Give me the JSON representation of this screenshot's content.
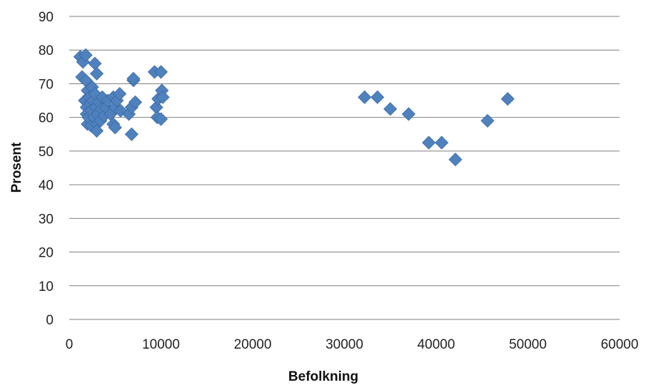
{
  "chart_data": {
    "type": "scatter",
    "title": "",
    "xlabel": "Befolkning",
    "ylabel": "Prosent",
    "xlim": [
      0,
      60000
    ],
    "ylim": [
      0,
      90
    ],
    "xticks": [
      0,
      10000,
      20000,
      30000,
      40000,
      50000,
      60000
    ],
    "yticks": [
      0,
      10,
      20,
      30,
      40,
      50,
      60,
      70,
      80,
      90
    ],
    "grid": "horizontal",
    "legend": "none",
    "marker": "diamond",
    "color": "#4f81bd",
    "points": [
      {
        "x": 1200,
        "y": 78
      },
      {
        "x": 1500,
        "y": 76.5
      },
      {
        "x": 1800,
        "y": 78.5
      },
      {
        "x": 1400,
        "y": 72
      },
      {
        "x": 1800,
        "y": 71
      },
      {
        "x": 1700,
        "y": 65
      },
      {
        "x": 1900,
        "y": 63
      },
      {
        "x": 1900,
        "y": 61
      },
      {
        "x": 2000,
        "y": 58
      },
      {
        "x": 2000,
        "y": 68
      },
      {
        "x": 2100,
        "y": 60
      },
      {
        "x": 2200,
        "y": 66
      },
      {
        "x": 2300,
        "y": 64
      },
      {
        "x": 2400,
        "y": 62
      },
      {
        "x": 2400,
        "y": 57.5
      },
      {
        "x": 2500,
        "y": 69
      },
      {
        "x": 2600,
        "y": 65
      },
      {
        "x": 2700,
        "y": 60
      },
      {
        "x": 2800,
        "y": 76
      },
      {
        "x": 2800,
        "y": 67
      },
      {
        "x": 2900,
        "y": 63
      },
      {
        "x": 3000,
        "y": 73
      },
      {
        "x": 3000,
        "y": 58
      },
      {
        "x": 3000,
        "y": 56
      },
      {
        "x": 3100,
        "y": 61
      },
      {
        "x": 3200,
        "y": 64.5
      },
      {
        "x": 3400,
        "y": 59
      },
      {
        "x": 3500,
        "y": 62.5
      },
      {
        "x": 3600,
        "y": 66
      },
      {
        "x": 3800,
        "y": 60.5
      },
      {
        "x": 4000,
        "y": 63
      },
      {
        "x": 4200,
        "y": 65
      },
      {
        "x": 4500,
        "y": 61
      },
      {
        "x": 4800,
        "y": 58
      },
      {
        "x": 4800,
        "y": 66
      },
      {
        "x": 5000,
        "y": 57
      },
      {
        "x": 5000,
        "y": 63
      },
      {
        "x": 5200,
        "y": 65
      },
      {
        "x": 5500,
        "y": 67
      },
      {
        "x": 5600,
        "y": 62
      },
      {
        "x": 6500,
        "y": 61
      },
      {
        "x": 6800,
        "y": 55
      },
      {
        "x": 6800,
        "y": 63
      },
      {
        "x": 7000,
        "y": 71
      },
      {
        "x": 7000,
        "y": 71.5
      },
      {
        "x": 7200,
        "y": 64.5
      },
      {
        "x": 9300,
        "y": 73.5
      },
      {
        "x": 9500,
        "y": 63
      },
      {
        "x": 9600,
        "y": 60
      },
      {
        "x": 9700,
        "y": 65.5
      },
      {
        "x": 10000,
        "y": 73.5
      },
      {
        "x": 10000,
        "y": 59.5
      },
      {
        "x": 10100,
        "y": 68
      },
      {
        "x": 10200,
        "y": 66
      },
      {
        "x": 32200,
        "y": 66
      },
      {
        "x": 33600,
        "y": 66
      },
      {
        "x": 35000,
        "y": 62.5
      },
      {
        "x": 37000,
        "y": 61
      },
      {
        "x": 39200,
        "y": 52.5
      },
      {
        "x": 40600,
        "y": 52.5
      },
      {
        "x": 42100,
        "y": 47.5
      },
      {
        "x": 45600,
        "y": 59
      },
      {
        "x": 47800,
        "y": 65.5
      }
    ]
  }
}
